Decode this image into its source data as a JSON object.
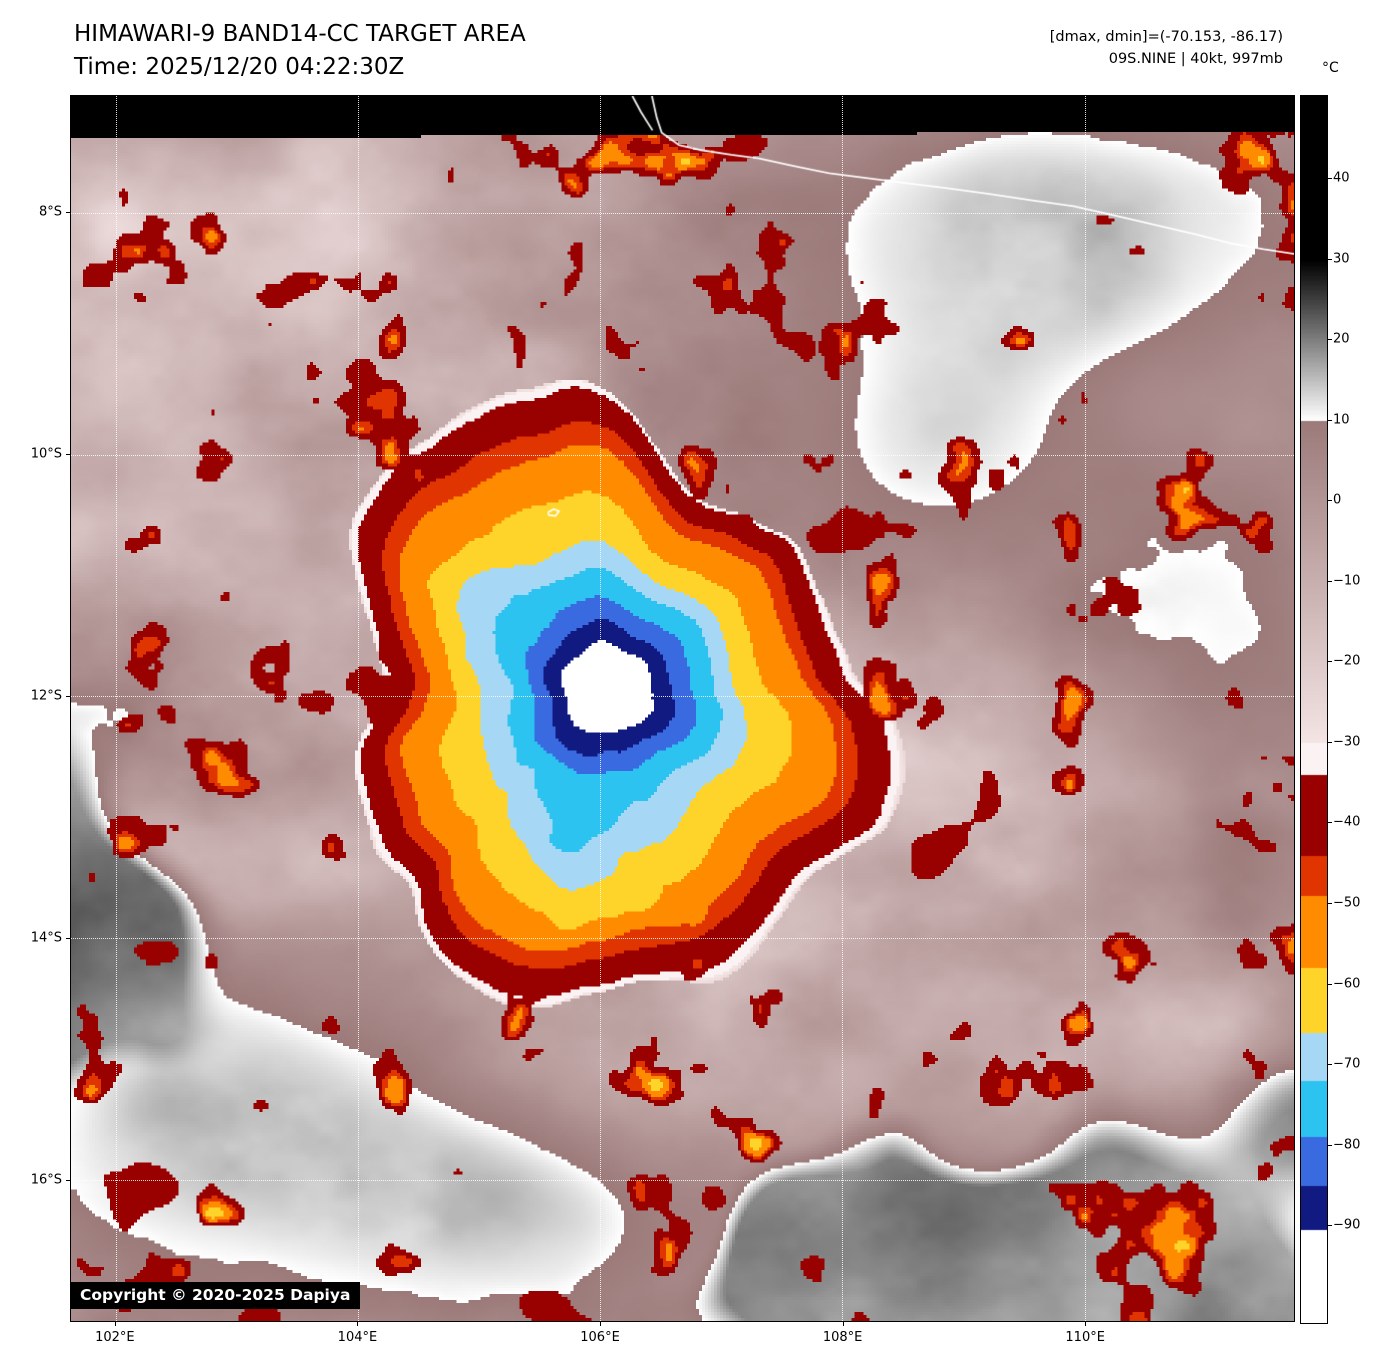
{
  "header": {
    "title": "HIMAWARI-9 BAND14-CC TARGET AREA",
    "time_line": "Time: 2025/12/20 04:22:30Z",
    "dmax_line": "[dmax, dmin]=(-70.153, -86.17)",
    "storm_line": "09S.NINE | 40kt, 997mb"
  },
  "copyright": "Copyright © 2020-2025 Dapiya",
  "colorbar": {
    "unit": "°C",
    "vmax": 50.3,
    "vmin": -102.0,
    "ticks": [
      {
        "value": 40,
        "label": "40"
      },
      {
        "value": 30,
        "label": "30"
      },
      {
        "value": 20,
        "label": "20"
      },
      {
        "value": 10,
        "label": "10"
      },
      {
        "value": 0,
        "label": "0"
      },
      {
        "value": -10,
        "label": "−10"
      },
      {
        "value": -20,
        "label": "−20"
      },
      {
        "value": -30,
        "label": "−30"
      },
      {
        "value": -40,
        "label": "−40"
      },
      {
        "value": -50,
        "label": "−50"
      },
      {
        "value": -60,
        "label": "−60"
      },
      {
        "value": -70,
        "label": "−70"
      },
      {
        "value": -80,
        "label": "−80"
      },
      {
        "value": -90,
        "label": "−90"
      }
    ]
  },
  "axes": {
    "lat": {
      "min": 7.03,
      "max": 17.17,
      "ticks": [
        {
          "value": 8,
          "label": "8°S"
        },
        {
          "value": 10,
          "label": "10°S"
        },
        {
          "value": 12,
          "label": "12°S"
        },
        {
          "value": 14,
          "label": "14°S"
        },
        {
          "value": 16,
          "label": "16°S"
        }
      ]
    },
    "lon": {
      "min": 101.63,
      "max": 111.73,
      "ticks": [
        {
          "value": 102,
          "label": "102°E"
        },
        {
          "value": 104,
          "label": "104°E"
        },
        {
          "value": 106,
          "label": "106°E"
        },
        {
          "value": 108,
          "label": "108°E"
        },
        {
          "value": 110,
          "label": "110°E"
        }
      ]
    }
  },
  "palette": {
    "white_below_minus90": "#ffffff",
    "navy": "#111a80",
    "royal": "#3a6ae0",
    "cyan": "#2cc3f0",
    "powder": "#a6d8f5",
    "yellow": "#ffd42a",
    "orange": "#ff8c00",
    "orange_red": "#e03500",
    "dark_red": "#990000",
    "pale_gap": "#fbf3f3",
    "mauve_warm": "#9c7a7a",
    "mauve_cold": "#f4e4e4"
  },
  "storm": {
    "center_u": 0.433,
    "center_v": 0.497,
    "shield_radius": 0.228
  },
  "geography": {
    "coast_main": [
      [
        0.475,
        0.0
      ],
      [
        0.479,
        0.018
      ],
      [
        0.483,
        0.03
      ],
      [
        0.497,
        0.04
      ],
      [
        0.514,
        0.044
      ],
      [
        0.54,
        0.048
      ],
      [
        0.563,
        0.051
      ],
      [
        0.59,
        0.057
      ],
      [
        0.62,
        0.063
      ],
      [
        0.65,
        0.067
      ],
      [
        0.682,
        0.071
      ],
      [
        0.715,
        0.075
      ],
      [
        0.751,
        0.08
      ],
      [
        0.785,
        0.085
      ],
      [
        0.82,
        0.09
      ],
      [
        0.855,
        0.098
      ],
      [
        0.89,
        0.106
      ],
      [
        0.92,
        0.113
      ],
      [
        0.947,
        0.12
      ],
      [
        0.975,
        0.125
      ],
      [
        1.001,
        0.129
      ]
    ],
    "coast_branch": [
      [
        0.459,
        0.0
      ],
      [
        0.466,
        0.013
      ],
      [
        0.4755,
        0.028
      ]
    ],
    "island": [
      [
        0.39,
        0.3398
      ],
      [
        0.3947,
        0.3372
      ],
      [
        0.399,
        0.339
      ],
      [
        0.396,
        0.3428
      ],
      [
        0.3906,
        0.342
      ],
      [
        0.39,
        0.3398
      ]
    ]
  },
  "chart_data": {
    "type": "heatmap",
    "title": "HIMAWARI-9 BAND14-CC TARGET AREA",
    "subtitle": "Time: 2025/12/20 04:22:30Z",
    "annotation_dmax_dmin": "[dmax, dmin]=(-70.153, -86.17)",
    "annotation_storm": "09S.NINE | 40kt, 997mb",
    "xlabel_ticks": [
      "102°E",
      "104°E",
      "106°E",
      "108°E",
      "110°E"
    ],
    "ylabel_ticks": [
      "8°S",
      "10°S",
      "12°S",
      "14°S",
      "16°S"
    ],
    "colorbar_unit": "°C",
    "colorbar_tick_values": [
      40,
      30,
      20,
      10,
      0,
      -10,
      -20,
      -30,
      -40,
      -50,
      -60,
      -70,
      -80,
      -90
    ],
    "legend_position": "right",
    "grid": true
  }
}
